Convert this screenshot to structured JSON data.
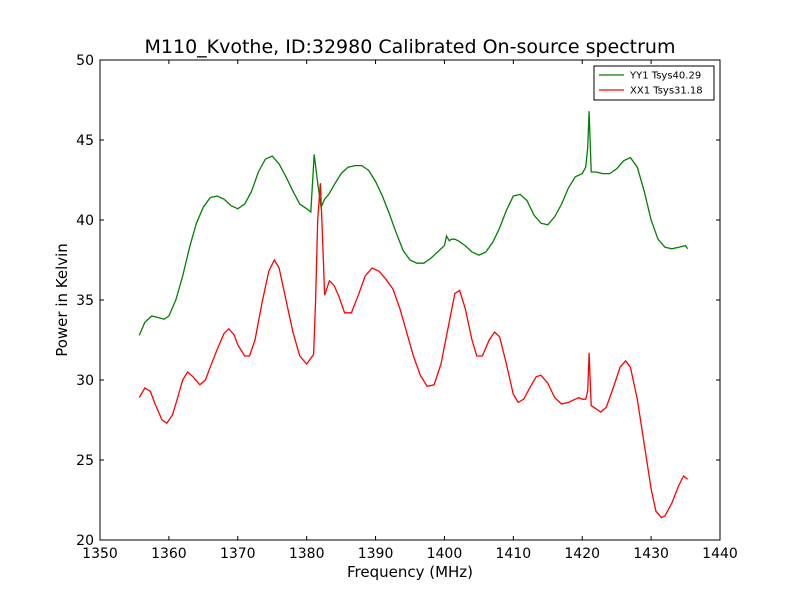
{
  "chart_data": {
    "type": "line",
    "title": "M110_Kvothe, ID:32980 Calibrated On-source spectrum",
    "xlabel": "Frequency (MHz)",
    "ylabel": "Power in Kelvin",
    "xlim": [
      1350,
      1440
    ],
    "ylim": [
      20,
      50
    ],
    "xticks": [
      "1350",
      "1360",
      "1370",
      "1380",
      "1390",
      "1400",
      "1410",
      "1420",
      "1430",
      "1440"
    ],
    "yticks": [
      "20",
      "25",
      "30",
      "35",
      "40",
      "45",
      "50"
    ],
    "grid": false,
    "legend_position": "top-right",
    "series": [
      {
        "name": "YY1 Tsys40.29",
        "color": "#008000",
        "x": [
          1355.7,
          1356.5,
          1357.5,
          1358.5,
          1359.3,
          1360,
          1361,
          1362,
          1363,
          1364,
          1365,
          1366,
          1367,
          1368,
          1369,
          1370,
          1371,
          1372,
          1373,
          1374,
          1375,
          1376,
          1377,
          1378,
          1379,
          1380,
          1380.6,
          1381.1,
          1381.6,
          1382.1,
          1382.6,
          1383.2,
          1384,
          1385,
          1386,
          1387,
          1388,
          1389,
          1390,
          1391,
          1392,
          1393,
          1394,
          1395,
          1396,
          1397,
          1398,
          1399,
          1400,
          1400.3,
          1400.7,
          1401,
          1401.5,
          1402,
          1403,
          1404,
          1405,
          1406,
          1407,
          1408,
          1409,
          1410,
          1411,
          1412,
          1413,
          1414,
          1415,
          1416,
          1417,
          1418,
          1419,
          1420,
          1420.5,
          1420.8,
          1421,
          1421.3,
          1422,
          1423,
          1424,
          1425,
          1426,
          1426.5,
          1427,
          1428,
          1429,
          1430,
          1431,
          1432,
          1433,
          1434,
          1435,
          1435.3
        ],
        "y": [
          32.8,
          33.6,
          34.0,
          33.9,
          33.8,
          34.0,
          35.0,
          36.5,
          38.3,
          39.8,
          40.8,
          41.4,
          41.5,
          41.3,
          40.9,
          40.7,
          41.0,
          41.8,
          43.0,
          43.8,
          44.0,
          43.5,
          42.7,
          41.8,
          41.0,
          40.7,
          40.5,
          44.1,
          42.3,
          40.8,
          41.3,
          41.6,
          42.2,
          42.9,
          43.3,
          43.4,
          43.4,
          43.1,
          42.4,
          41.5,
          40.4,
          39.2,
          38.1,
          37.5,
          37.3,
          37.3,
          37.6,
          38.0,
          38.4,
          39.0,
          38.7,
          38.8,
          38.8,
          38.7,
          38.4,
          38.0,
          37.8,
          38.0,
          38.6,
          39.5,
          40.6,
          41.5,
          41.6,
          41.2,
          40.3,
          39.8,
          39.7,
          40.2,
          41.0,
          42.0,
          42.7,
          42.9,
          43.3,
          44.5,
          46.8,
          43.0,
          43.0,
          42.9,
          42.9,
          43.2,
          43.7,
          43.8,
          43.9,
          43.3,
          41.8,
          40.0,
          38.8,
          38.3,
          38.2,
          38.3,
          38.4,
          38.2
        ]
      },
      {
        "name": "XX1 Tsys31.18",
        "color": "#ff0000",
        "x": [
          1355.7,
          1356.5,
          1357.3,
          1358,
          1359,
          1359.7,
          1360.5,
          1361,
          1362,
          1362.7,
          1363.5,
          1364.5,
          1365.3,
          1366,
          1367,
          1368,
          1368.7,
          1369.5,
          1370,
          1371,
          1371.7,
          1372.5,
          1373.5,
          1374.5,
          1375.3,
          1376,
          1377,
          1378,
          1379,
          1380,
          1380.5,
          1381,
          1381.3,
          1381.6,
          1382,
          1382.3,
          1382.6,
          1383.3,
          1384,
          1384.7,
          1385.5,
          1386.5,
          1387.5,
          1388.5,
          1389.5,
          1390.5,
          1391.5,
          1392.5,
          1393.5,
          1394.5,
          1395.5,
          1396.5,
          1397.5,
          1398.5,
          1399.5,
          1400.5,
          1401.5,
          1402.2,
          1403,
          1404,
          1404.7,
          1405.5,
          1406.5,
          1407.3,
          1408,
          1409,
          1410,
          1410.7,
          1411.5,
          1412.5,
          1413.3,
          1414,
          1415,
          1416,
          1417,
          1418,
          1419,
          1419.5,
          1420,
          1420.5,
          1420.8,
          1421,
          1421.3,
          1422,
          1422.7,
          1423.5,
          1424.5,
          1425.5,
          1426.3,
          1427,
          1428,
          1429,
          1430,
          1430.7,
          1431.5,
          1432,
          1433,
          1434,
          1434.7,
          1435.3
        ],
        "y": [
          28.9,
          29.5,
          29.3,
          28.5,
          27.5,
          27.3,
          27.8,
          28.5,
          30.0,
          30.5,
          30.2,
          29.7,
          30.0,
          30.8,
          31.9,
          32.9,
          33.2,
          32.8,
          32.2,
          31.5,
          31.5,
          32.5,
          34.8,
          36.8,
          37.5,
          37.0,
          35.0,
          33.0,
          31.5,
          31.0,
          31.3,
          31.6,
          35.0,
          40.0,
          42.3,
          39.0,
          35.3,
          36.2,
          35.9,
          35.2,
          34.2,
          34.2,
          35.3,
          36.5,
          37.0,
          36.8,
          36.3,
          35.7,
          34.5,
          33.0,
          31.5,
          30.3,
          29.6,
          29.7,
          31.0,
          33.2,
          35.4,
          35.6,
          34.5,
          32.5,
          31.5,
          31.5,
          32.5,
          33.0,
          32.7,
          31.0,
          29.1,
          28.6,
          28.8,
          29.6,
          30.2,
          30.3,
          29.8,
          28.9,
          28.5,
          28.6,
          28.8,
          28.9,
          28.8,
          28.8,
          29.3,
          31.7,
          28.4,
          28.2,
          28.0,
          28.3,
          29.5,
          30.8,
          31.2,
          30.8,
          28.8,
          26.0,
          23.2,
          21.8,
          21.4,
          21.5,
          22.3,
          23.4,
          24.0,
          23.8
        ]
      }
    ]
  }
}
